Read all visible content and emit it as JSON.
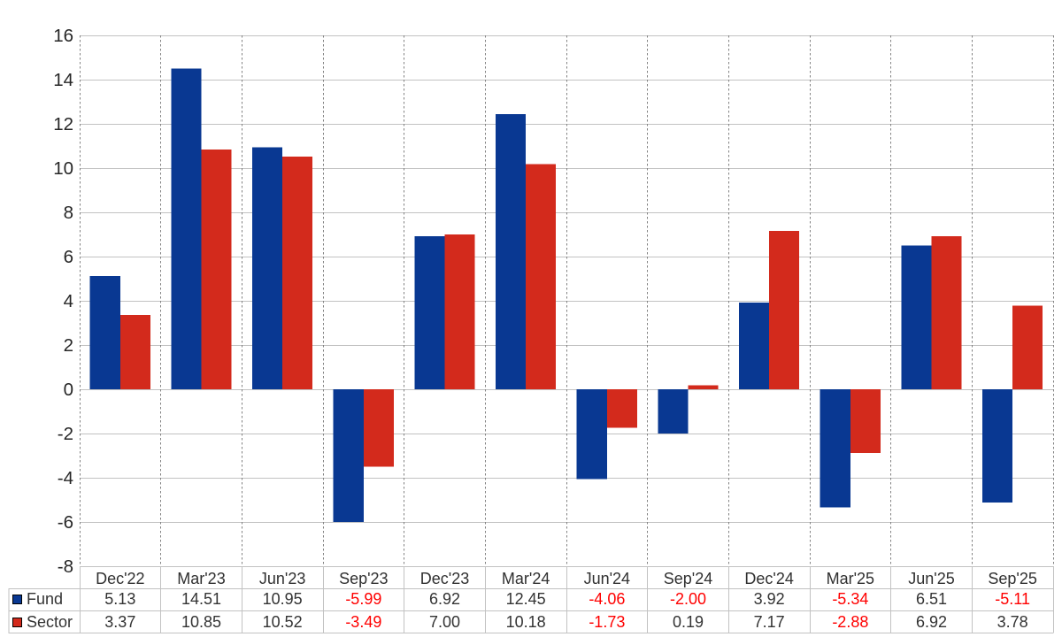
{
  "chart_data": {
    "type": "bar",
    "title": "",
    "categories": [
      "Dec'22",
      "Mar'23",
      "Jun'23",
      "Sep'23",
      "Dec'23",
      "Mar'24",
      "Jun'24",
      "Sep'24",
      "Dec'24",
      "Mar'25",
      "Jun'25",
      "Sep'25"
    ],
    "series": [
      {
        "name": "Fund",
        "color": "#093892",
        "values": [
          5.13,
          14.51,
          10.95,
          -5.99,
          6.92,
          12.45,
          -4.06,
          -2.0,
          3.92,
          -5.34,
          6.51,
          -5.11
        ]
      },
      {
        "name": "Sector",
        "color": "#d32a1c",
        "values": [
          3.37,
          10.85,
          10.52,
          -3.49,
          7.0,
          10.18,
          -1.73,
          0.19,
          7.17,
          -2.88,
          6.92,
          3.78
        ]
      }
    ],
    "xlabel": "",
    "ylabel": "",
    "ylim": [
      -8,
      16
    ],
    "ytick_step": 2,
    "ytick_labels": [
      "-8",
      "-6",
      "-4",
      "-2",
      "0",
      "2",
      "4",
      "6",
      "8",
      "10",
      "12",
      "14",
      "16"
    ],
    "grid": {
      "horizontal": "solid",
      "vertical": "dotted"
    },
    "legend_position": "table-left",
    "value_decimals": 2,
    "table": {
      "row_labels": [
        "Fund",
        "Sector"
      ],
      "negative_value_color": "#ff0000"
    }
  },
  "styles": {
    "background": "#ffffff",
    "gridline_color": "#c2c2c2",
    "vertical_gridline_color": "#828282",
    "table_border_color": "#c2c2c2",
    "axis_text_color": "#262626",
    "table_text_color": "#333333",
    "negative_text_color": "#ff0000",
    "swatch_border_color": "#000000"
  }
}
